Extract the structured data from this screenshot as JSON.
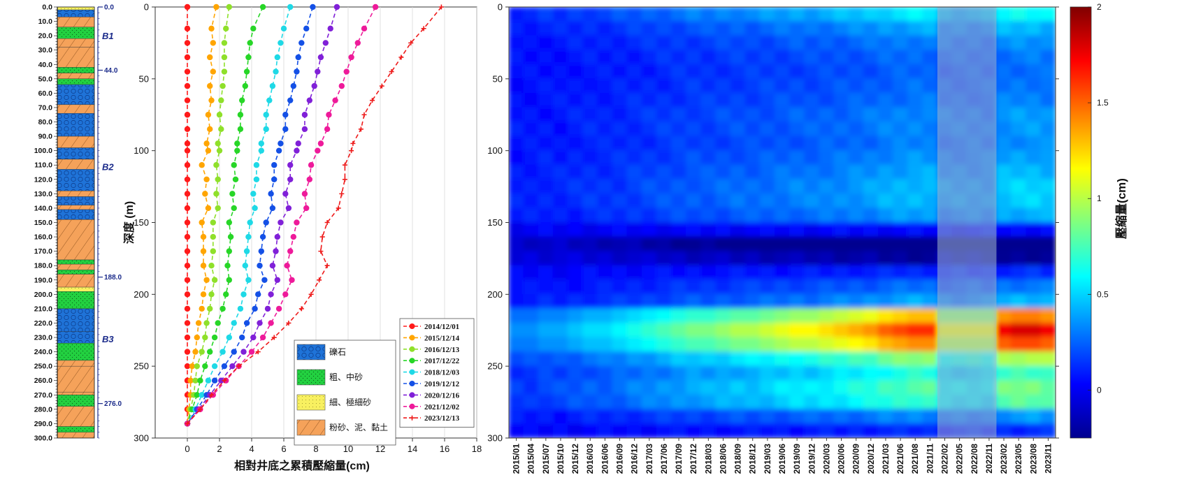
{
  "strat_column": {
    "depth_labels": [
      "0.0",
      "10.0",
      "20.0",
      "30.0",
      "40.0",
      "50.0",
      "60.0",
      "70.0",
      "80.0",
      "90.0",
      "100.0",
      "110.0",
      "120.0",
      "130.0",
      "140.0",
      "150.0",
      "160.0",
      "170.0",
      "180.0",
      "190.0",
      "200.0",
      "210.0",
      "220.0",
      "230.0",
      "240.0",
      "250.0",
      "260.0",
      "270.0",
      "280.0",
      "290.0",
      "300.0"
    ],
    "markers": [
      {
        "depth": 0,
        "label": "0.0"
      },
      {
        "depth": 44,
        "label": "44.0"
      },
      {
        "depth": 188,
        "label": "188.0"
      },
      {
        "depth": 276,
        "label": "276.0"
      }
    ],
    "aquifers": [
      {
        "depth": 20,
        "label": "B1"
      },
      {
        "depth": 111,
        "label": "B2"
      },
      {
        "depth": 231,
        "label": "B3"
      }
    ],
    "layers": [
      {
        "top": 0,
        "bottom": 2,
        "kind": "sand_fine"
      },
      {
        "top": 2,
        "bottom": 7,
        "kind": "gravel"
      },
      {
        "top": 7,
        "bottom": 14,
        "kind": "silt_clay"
      },
      {
        "top": 14,
        "bottom": 22,
        "kind": "sand_coarse"
      },
      {
        "top": 22,
        "bottom": 28,
        "kind": "silt_clay"
      },
      {
        "top": 28,
        "bottom": 42,
        "kind": "silt_clay"
      },
      {
        "top": 42,
        "bottom": 46,
        "kind": "sand_coarse"
      },
      {
        "top": 46,
        "bottom": 50,
        "kind": "silt_clay"
      },
      {
        "top": 50,
        "bottom": 54,
        "kind": "sand_coarse"
      },
      {
        "top": 54,
        "bottom": 68,
        "kind": "gravel"
      },
      {
        "top": 68,
        "bottom": 74,
        "kind": "silt_clay"
      },
      {
        "top": 74,
        "bottom": 90,
        "kind": "gravel"
      },
      {
        "top": 90,
        "bottom": 98,
        "kind": "silt_clay"
      },
      {
        "top": 98,
        "bottom": 106,
        "kind": "gravel"
      },
      {
        "top": 106,
        "bottom": 113,
        "kind": "silt_clay"
      },
      {
        "top": 113,
        "bottom": 128,
        "kind": "gravel"
      },
      {
        "top": 128,
        "bottom": 132,
        "kind": "silt_clay"
      },
      {
        "top": 132,
        "bottom": 138,
        "kind": "gravel"
      },
      {
        "top": 138,
        "bottom": 141,
        "kind": "silt_clay"
      },
      {
        "top": 141,
        "bottom": 148,
        "kind": "gravel"
      },
      {
        "top": 148,
        "bottom": 176,
        "kind": "silt_clay"
      },
      {
        "top": 176,
        "bottom": 179,
        "kind": "sand_coarse"
      },
      {
        "top": 179,
        "bottom": 183,
        "kind": "silt_clay"
      },
      {
        "top": 183,
        "bottom": 186,
        "kind": "sand_coarse"
      },
      {
        "top": 186,
        "bottom": 195,
        "kind": "silt_clay"
      },
      {
        "top": 195,
        "bottom": 198,
        "kind": "sand_fine"
      },
      {
        "top": 198,
        "bottom": 210,
        "kind": "sand_coarse"
      },
      {
        "top": 210,
        "bottom": 226,
        "kind": "gravel"
      },
      {
        "top": 226,
        "bottom": 234,
        "kind": "gravel"
      },
      {
        "top": 234,
        "bottom": 246,
        "kind": "sand_coarse"
      },
      {
        "top": 246,
        "bottom": 250,
        "kind": "silt_clay"
      },
      {
        "top": 250,
        "bottom": 268,
        "kind": "silt_clay"
      },
      {
        "top": 268,
        "bottom": 270,
        "kind": "silt_clay"
      },
      {
        "top": 270,
        "bottom": 278,
        "kind": "sand_coarse"
      },
      {
        "top": 278,
        "bottom": 292,
        "kind": "silt_clay"
      },
      {
        "top": 292,
        "bottom": 296,
        "kind": "sand_coarse"
      },
      {
        "top": 296,
        "bottom": 300,
        "kind": "silt_clay"
      }
    ]
  },
  "profile_chart": {
    "ylabel": "深度 (m)",
    "xlabel": "相對井底之累積壓縮量(cm)",
    "xlim": [
      -2,
      18
    ],
    "ylim": [
      0,
      300
    ],
    "xticks": [
      0,
      2,
      4,
      6,
      8,
      10,
      12,
      14,
      16,
      18
    ],
    "yticks": [
      0,
      50,
      100,
      150,
      200,
      250,
      300
    ],
    "lithology_legend": [
      {
        "label": "礫石",
        "kind": "gravel"
      },
      {
        "label": "粗、中砂",
        "kind": "sand_coarse"
      },
      {
        "label": "細、極細砂",
        "kind": "sand_fine"
      },
      {
        "label": "粉砂、泥、黏土",
        "kind": "silt_clay"
      }
    ]
  },
  "chart_data": [
    {
      "type": "line",
      "xlabel": "相對井底之累積壓縮量(cm)",
      "ylabel": "深度 (m)",
      "xlim": [
        -2,
        18
      ],
      "ylim": [
        300,
        0
      ],
      "legend_position": "bottom-right",
      "depths": [
        0,
        15,
        25,
        35,
        45,
        55,
        65,
        75,
        85,
        95,
        100,
        110,
        120,
        130,
        140,
        150,
        160,
        170,
        180,
        190,
        200,
        210,
        220,
        230,
        240,
        250,
        260,
        270,
        280,
        290
      ],
      "series": [
        {
          "name": "2014/12/01",
          "color": "#ff1a1a",
          "marker": "circle",
          "values": [
            0,
            0,
            0,
            0,
            0,
            0,
            0,
            0,
            0,
            0,
            0,
            0,
            0,
            0,
            0,
            0,
            0,
            0,
            0,
            0,
            0,
            0,
            0,
            0,
            0,
            0,
            0,
            0,
            0,
            0
          ]
        },
        {
          "name": "2015/12/14",
          "color": "#ffa500",
          "marker": "circle",
          "values": [
            1.8,
            1.5,
            1.6,
            1.4,
            1.6,
            1.4,
            1.5,
            1.3,
            1.4,
            1.2,
            1.3,
            0.9,
            1.2,
            1.1,
            1.3,
            0.9,
            1.0,
            1.0,
            1.0,
            1.2,
            1.0,
            0.9,
            0.7,
            0.6,
            0.5,
            0.3,
            0.2,
            0.2,
            0.1,
            0
          ]
        },
        {
          "name": "2016/12/13",
          "color": "#8fe02a",
          "marker": "circle",
          "values": [
            2.6,
            2.4,
            2.3,
            2.3,
            2.3,
            2.2,
            2.1,
            2.0,
            2.1,
            1.9,
            2.0,
            1.8,
            1.9,
            1.8,
            1.9,
            1.6,
            1.6,
            1.6,
            1.5,
            1.7,
            1.5,
            1.4,
            1.2,
            1.1,
            0.9,
            0.6,
            0.5,
            0.4,
            0.2,
            0
          ]
        },
        {
          "name": "2017/12/22",
          "color": "#27d627",
          "marker": "circle",
          "values": [
            4.7,
            4.1,
            3.9,
            3.8,
            3.7,
            3.6,
            3.4,
            3.3,
            3.3,
            3.1,
            3.1,
            2.9,
            3.0,
            2.8,
            2.9,
            2.6,
            2.7,
            2.6,
            2.5,
            2.6,
            2.4,
            2.2,
            1.9,
            1.7,
            1.4,
            1.1,
            0.8,
            0.6,
            0.3,
            0
          ]
        },
        {
          "name": "2018/12/03",
          "color": "#1ed9e6",
          "marker": "circle",
          "values": [
            6.4,
            6.0,
            5.8,
            5.6,
            5.5,
            5.3,
            5.1,
            4.9,
            4.9,
            4.6,
            4.6,
            4.3,
            4.3,
            4.1,
            4.2,
            3.9,
            3.8,
            3.7,
            3.6,
            3.8,
            3.5,
            3.3,
            2.9,
            2.6,
            2.2,
            1.7,
            1.3,
            0.9,
            0.5,
            0
          ]
        },
        {
          "name": "2019/12/12",
          "color": "#1450e6",
          "marker": "circle",
          "values": [
            7.8,
            7.4,
            7.1,
            6.9,
            6.8,
            6.6,
            6.4,
            6.1,
            6.1,
            5.8,
            5.7,
            5.4,
            5.4,
            5.2,
            5.3,
            4.9,
            4.7,
            4.6,
            4.5,
            4.8,
            4.4,
            4.2,
            3.7,
            3.4,
            2.9,
            2.3,
            1.7,
            1.2,
            0.6,
            0
          ]
        },
        {
          "name": "2020/12/16",
          "color": "#8020d8",
          "marker": "circle",
          "values": [
            9.3,
            8.9,
            8.6,
            8.3,
            8.1,
            7.9,
            7.6,
            7.3,
            7.3,
            6.9,
            6.8,
            6.4,
            6.4,
            6.1,
            6.3,
            5.8,
            5.6,
            5.5,
            5.3,
            5.6,
            5.2,
            5.0,
            4.5,
            4.1,
            3.5,
            2.8,
            2.1,
            1.4,
            0.7,
            0
          ]
        },
        {
          "name": "2021/12/02",
          "color": "#ee1a9a",
          "marker": "circle",
          "values": [
            11.7,
            11.0,
            10.6,
            10.2,
            9.9,
            9.6,
            9.2,
            8.8,
            8.7,
            8.3,
            8.1,
            7.7,
            7.6,
            7.3,
            7.4,
            6.8,
            6.6,
            6.4,
            6.2,
            6.5,
            6.1,
            5.7,
            5.2,
            4.7,
            4.0,
            3.2,
            2.4,
            1.6,
            0.8,
            0
          ]
        },
        {
          "name": "2023/12/13",
          "color": "#ee1a1a",
          "marker": "plus",
          "values": [
            15.8,
            14.7,
            13.9,
            13.3,
            12.7,
            12.1,
            11.5,
            11.0,
            10.8,
            10.3,
            10.2,
            9.8,
            9.8,
            9.6,
            9.4,
            8.7,
            8.4,
            8.3,
            8.7,
            8.2,
            7.7,
            7.1,
            6.3,
            5.4,
            4.4,
            3.2,
            2.3,
            1.5,
            0.8,
            0
          ]
        }
      ]
    },
    {
      "type": "heatmap",
      "ylabel": "",
      "xlabel": "",
      "ylim": [
        0,
        300
      ],
      "yticks": [
        0,
        50,
        100,
        150,
        200,
        250,
        300
      ],
      "x_labels": [
        "2015/01",
        "2015/04",
        "2015/07",
        "2015/10",
        "2015/12",
        "2016/03",
        "2016/06",
        "2016/09",
        "2016/12",
        "2017/03",
        "2017/06",
        "2017/09",
        "2017/12",
        "2018/03",
        "2018/06",
        "2018/09",
        "2018/12",
        "2019/03",
        "2019/06",
        "2019/09",
        "2019/12",
        "2020/03",
        "2020/06",
        "2020/09",
        "2020/12",
        "2021/03",
        "2021/06",
        "2021/08",
        "2021/11",
        "2022/02",
        "2022/05",
        "2022/08",
        "2022/11",
        "2023/02",
        "2023/05",
        "2023/08",
        "2023/11"
      ],
      "colorbar": {
        "label": "壓縮量(cm)",
        "min": -0.25,
        "max": 2,
        "ticks": [
          0,
          0.5,
          1,
          1.5,
          2
        ],
        "colormap": "jet"
      },
      "masked_period": [
        "2022/02",
        "2022/11"
      ],
      "depth_profile_base": [
        0.25,
        0.18,
        0.14,
        0.12,
        0.11,
        0.12,
        0.13,
        0.15,
        0.15,
        0.14,
        0.16,
        0.18,
        0.2,
        0.2,
        0.17,
        0.02,
        -0.2,
        -0.1,
        0.05,
        0.12,
        0.18,
        0.6,
        0.75,
        0.65,
        0.4,
        0.3,
        0.35,
        0.32,
        0.15,
        0.05
      ],
      "growth_by_period": [
        0.3,
        0.3,
        0.35,
        0.35,
        0.4,
        0.45,
        0.45,
        0.5,
        0.55,
        0.6,
        0.65,
        0.7,
        0.75,
        0.75,
        0.8,
        0.85,
        0.85,
        0.9,
        0.95,
        1.0,
        1.0,
        1.05,
        1.1,
        1.15,
        1.2,
        1.3,
        1.35,
        1.4,
        1.4,
        1.0,
        1.0,
        1.0,
        1.0,
        1.5,
        1.55,
        1.55,
        1.5
      ]
    }
  ]
}
